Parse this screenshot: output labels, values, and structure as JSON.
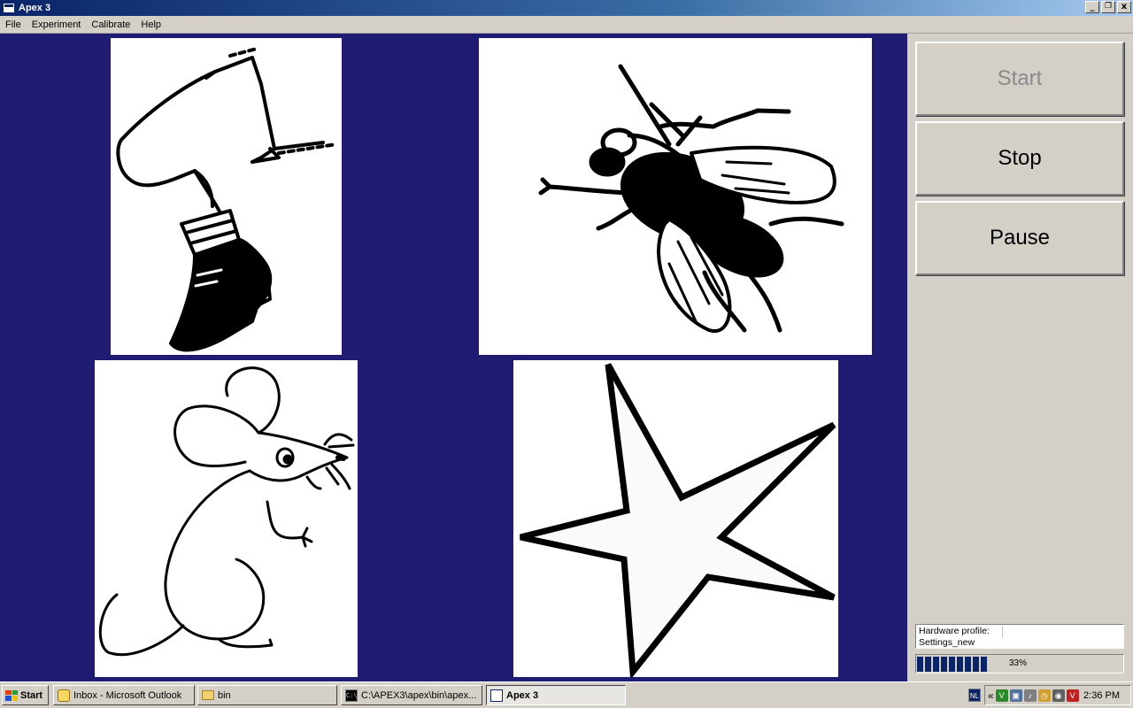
{
  "window": {
    "title": "Apex 3",
    "minimize": "_",
    "restore": "🗗",
    "close": "x"
  },
  "menu": {
    "items": [
      "File",
      "Experiment",
      "Calibrate",
      "Help"
    ]
  },
  "stimuli": [
    {
      "name": "leg",
      "icon": "leg-picture"
    },
    {
      "name": "fly",
      "icon": "fly-picture"
    },
    {
      "name": "mouse",
      "icon": "mouse-picture"
    },
    {
      "name": "star",
      "icon": "star-picture"
    }
  ],
  "controls": {
    "start": "Start",
    "stop": "Stop",
    "pause": "Pause",
    "start_enabled": false
  },
  "status": {
    "hardware_profile_label": "Hardware profile:",
    "settings_text": "Settings_new",
    "progress_percent": 33,
    "progress_text": "33%"
  },
  "taskbar": {
    "start_label": "Start",
    "tasks": [
      {
        "label": "Inbox - Microsoft Outlook",
        "icon": "outlook-icon"
      },
      {
        "label": "bin",
        "icon": "folder-icon"
      },
      {
        "label": "C:\\APEX3\\apex\\bin\\apex...",
        "icon": "cmd-icon"
      },
      {
        "label": "Apex 3",
        "icon": "window-icon",
        "active": true
      }
    ],
    "language": "NL",
    "tray_chevron": "«",
    "clock": "2:36 PM"
  },
  "colors": {
    "stage_background": "#201c74",
    "titlebar_start": "#0a246a",
    "progress_fill": "#0a246a"
  }
}
